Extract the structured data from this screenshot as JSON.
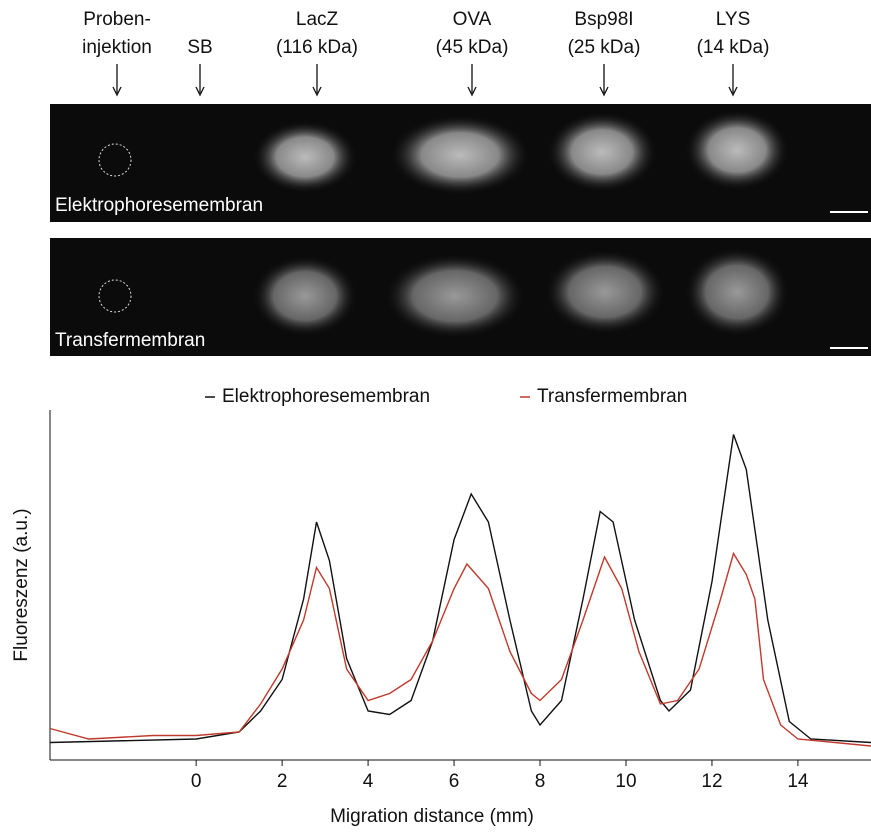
{
  "figure": {
    "lanes": [
      {
        "lines": [
          "Proben-",
          "injektion"
        ]
      },
      {
        "lines": [
          "SB"
        ]
      },
      {
        "lines": [
          "LacZ",
          "(116 kDa)"
        ]
      },
      {
        "lines": [
          "OVA",
          "(45 kDa)"
        ]
      },
      {
        "lines": [
          "Bsp98I",
          "(25 kDa)"
        ]
      },
      {
        "lines": [
          "LYS",
          "(14 kDa)"
        ]
      }
    ],
    "panels": [
      "Elektrophoresemembran",
      "Transfermembran"
    ]
  },
  "chart_data": {
    "type": "line",
    "xlabel": "Migration distance (mm)",
    "ylabel": "Fluoreszenz (a.u.)",
    "xlim": [
      -3.4,
      15.7
    ],
    "ylim": [
      0,
      100
    ],
    "xticks": [
      0,
      2,
      4,
      6,
      8,
      10,
      12,
      14
    ],
    "series": [
      {
        "name": "Elektrophoresemembran",
        "color": "#111111",
        "x": [
          -3.4,
          0,
          1,
          1.5,
          2,
          2.5,
          2.8,
          3.1,
          3.5,
          4,
          4.5,
          5,
          5.5,
          6,
          6.4,
          6.8,
          7.3,
          7.8,
          8,
          8.5,
          9,
          9.4,
          9.7,
          10.2,
          10.8,
          11,
          11.5,
          12,
          12.5,
          12.8,
          13.3,
          13.8,
          14.3,
          15.7
        ],
        "values": [
          5,
          6,
          8,
          14,
          23,
          46,
          68,
          57,
          29,
          14,
          13,
          17,
          34,
          63,
          76,
          68,
          40,
          14,
          10,
          17,
          46,
          71,
          68,
          40,
          17,
          14,
          20,
          51,
          93,
          83,
          40,
          11,
          6,
          5
        ]
      },
      {
        "name": "Transfermembran",
        "color": "#c0392b",
        "x": [
          -3.4,
          -2.5,
          -1,
          0,
          1,
          1.5,
          2,
          2.5,
          2.8,
          3.1,
          3.5,
          4,
          4.5,
          5,
          5.5,
          6,
          6.3,
          6.8,
          7.3,
          7.8,
          8,
          8.5,
          9,
          9.5,
          9.9,
          10.3,
          10.8,
          11.2,
          11.7,
          12.2,
          12.5,
          12.8,
          13,
          13.2,
          13.6,
          14,
          15.7
        ],
        "values": [
          9,
          6,
          7,
          7,
          8,
          16,
          26,
          40,
          55,
          49,
          26,
          17,
          19,
          23,
          34,
          49,
          56,
          49,
          31,
          19,
          17,
          23,
          40,
          58,
          49,
          31,
          16,
          17,
          26,
          46,
          59,
          53,
          46,
          23,
          10,
          6,
          4
        ]
      }
    ]
  }
}
